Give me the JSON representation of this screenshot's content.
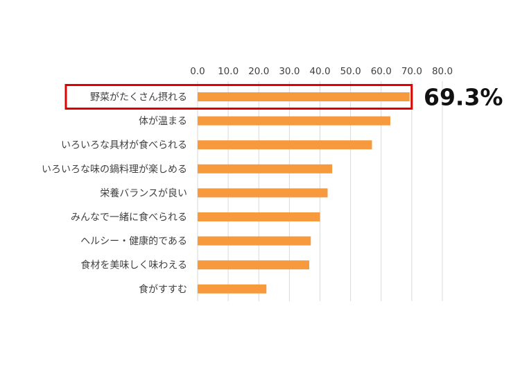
{
  "chart_data": {
    "type": "bar",
    "orientation": "horizontal",
    "xlim": [
      0,
      80
    ],
    "x_ticks": [
      "0.0",
      "10.0",
      "20.0",
      "30.0",
      "40.0",
      "50.0",
      "60.0",
      "70.0",
      "80.0"
    ],
    "x_tick_values": [
      0,
      10,
      20,
      30,
      40,
      50,
      60,
      70,
      80
    ],
    "x_axis_position": "top",
    "grid": true,
    "categories": [
      "野菜がたくさん摂れる",
      "体が温まる",
      "いろいろな具材が食べられる",
      "いろいろな味の鍋料理が楽しめる",
      "栄養バランスが良い",
      "みんなで一緒に食べられる",
      "ヘルシー・健康的である",
      "食材を美味しく味わえる",
      "食がすすむ"
    ],
    "values": [
      69.3,
      63.0,
      57.0,
      44.0,
      42.5,
      40.0,
      37.0,
      36.5,
      22.5
    ],
    "highlight": {
      "category_index": 0,
      "label": "69.3%"
    }
  },
  "colors": {
    "bar": "#F79A3E",
    "highlight_border": "#E00000",
    "grid": "#D9D9D9",
    "text": "#404040"
  }
}
